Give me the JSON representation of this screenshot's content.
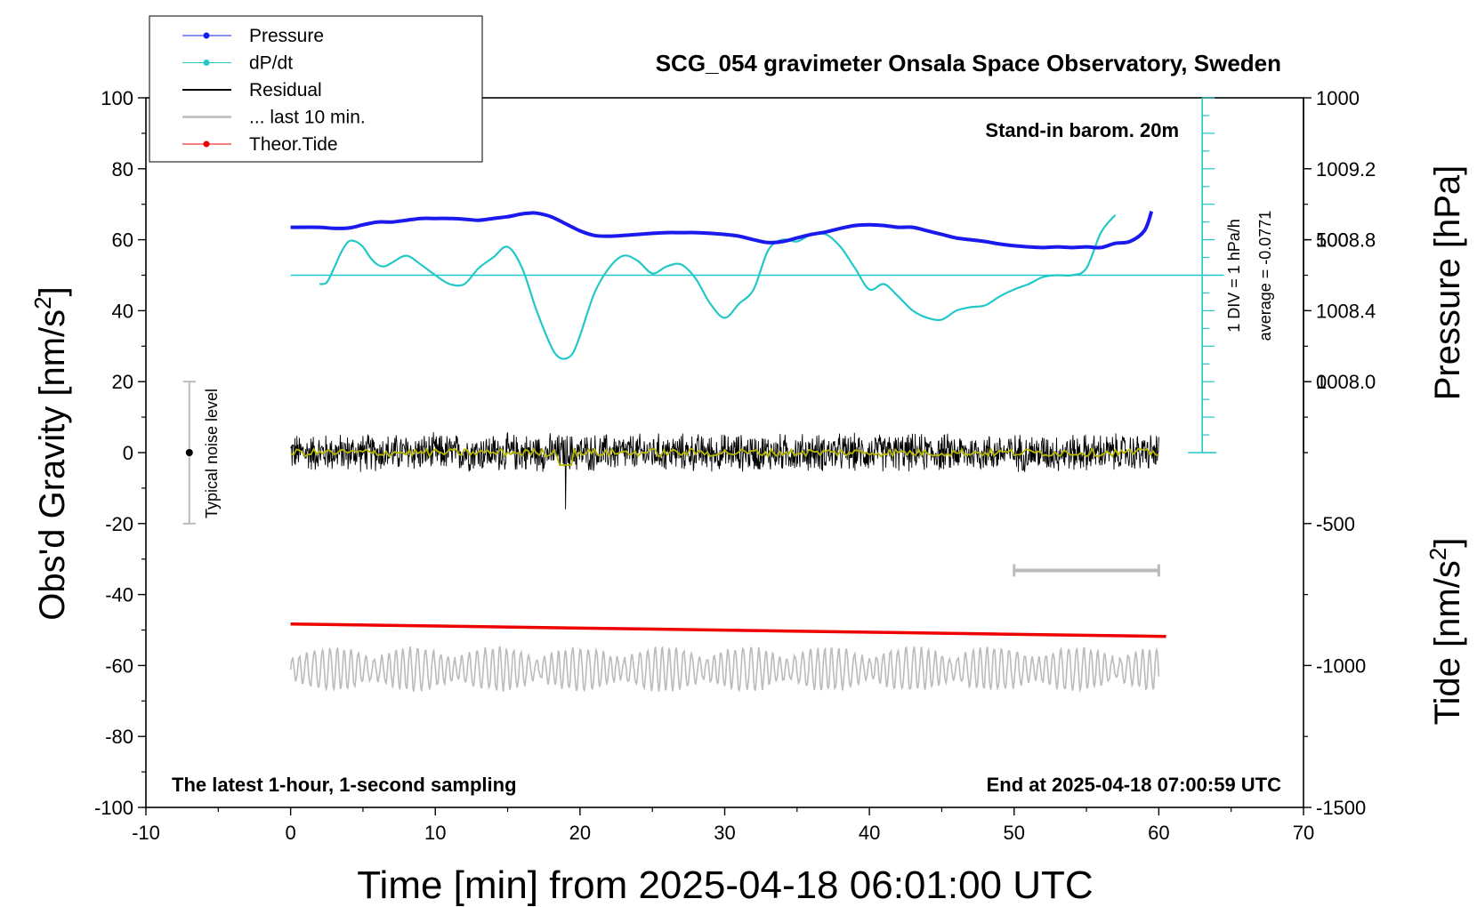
{
  "chart_data": {
    "type": "line",
    "title": "SCG_054 gravimeter Onsala Space Observatory, Sweden",
    "xlabel": "Time [min] from 2025-04-18 06:01:00 UTC",
    "ylabel_left": "Obs'd Gravity [nm/s",
    "ylabel_left_sup": "2",
    "ylabel_left_end": "]",
    "ylabel_right_pressure": "Pressure [hPa]",
    "ylabel_right_tide": "Tide [nm/s",
    "ylabel_right_tide_sup": "2",
    "ylabel_right_tide_end": "]",
    "xlim": [
      -10,
      70
    ],
    "ylim": [
      -100,
      100
    ],
    "x_ticks": [
      "-10",
      "0",
      "10",
      "20",
      "30",
      "40",
      "50",
      "60",
      "70"
    ],
    "y_ticks": [
      "-100",
      "-80",
      "-60",
      "-40",
      "-20",
      "0",
      "20",
      "40",
      "60",
      "80",
      "100"
    ],
    "pressure_ticks": [
      "1008.0",
      "1008.4",
      "1008.8",
      "1009.2"
    ],
    "pressure_tick_values": [
      1008.0,
      1008.4,
      1008.8,
      1009.2
    ],
    "pressure_axis_map": {
      "hpa_at_gravity_0": 1007.6,
      "hpa_per_gravity_unit": 0.02
    },
    "tide_ticks": [
      "1000",
      "500",
      "0",
      "-500",
      "-1000",
      "-1500"
    ],
    "tide_tick_values": [
      1000,
      500,
      0,
      -500,
      -1000,
      -1500
    ],
    "tide_axis_map": {
      "tide_at_gravity_neg100": -1500,
      "tide_per_gravity_unit": 12.5
    },
    "annotations": {
      "barometer": "Stand-in barom. 20m",
      "div_note": "1 DIV = 1 hPa/h",
      "average_note": "average = -0.0771",
      "noise_level": "Typical noise level",
      "latest": "The latest 1-hour, 1-second sampling",
      "end_at": "End at 2025-04-18 07:00:59 UTC"
    },
    "legend": {
      "position": "top-left",
      "entries": [
        {
          "label": "Pressure",
          "color": "#1a1aee"
        },
        {
          "label": "dP/dt",
          "color": "#22c8c8"
        },
        {
          "label": "Residual",
          "color": "#000000"
        },
        {
          "label": "... last 10 min.",
          "color": "#bbbbbb"
        },
        {
          "label": "Theor.Tide",
          "color": "#ee0000"
        }
      ]
    },
    "colors": {
      "pressure": "#1a1aee",
      "dpdt": "#22c8c8",
      "residual": "#000000",
      "residual_smooth": "#b5b500",
      "last10": "#bbbbbb",
      "tide": "#ee0000",
      "noise_bar": "#bbbbbb"
    },
    "series": [
      {
        "name": "Pressure",
        "unit": "plot-units (left axis)",
        "x": [
          0,
          2,
          3,
          4,
          5,
          6,
          7,
          8,
          9,
          10,
          11,
          12,
          13,
          14,
          15,
          16,
          16.5,
          17,
          18,
          19,
          20,
          21,
          22,
          23,
          24,
          25,
          26,
          27,
          28,
          29,
          30,
          31,
          32,
          33,
          34,
          35,
          36,
          37,
          38,
          39,
          40,
          41,
          42,
          43,
          44,
          45,
          46,
          47,
          48,
          49,
          50,
          51,
          52,
          53,
          54,
          55,
          56,
          57,
          58,
          59,
          59.5
        ],
        "y": [
          63.5,
          63.5,
          63.2,
          63.3,
          64.2,
          65,
          65,
          65.5,
          66,
          66,
          66,
          65.8,
          65.5,
          66,
          66.5,
          67.3,
          67.5,
          67.5,
          66.5,
          64.5,
          62.5,
          61.2,
          61,
          61.2,
          61.5,
          61.8,
          62,
          62,
          62,
          61.8,
          61.5,
          61,
          60,
          59.2,
          59.5,
          60.5,
          61.5,
          62.2,
          63.2,
          64,
          64.2,
          64,
          63.5,
          63.5,
          62.5,
          61.5,
          60.5,
          60,
          59.5,
          58.8,
          58.3,
          58,
          57.8,
          58,
          57.8,
          58,
          57.8,
          59,
          59.5,
          62.5,
          68
        ]
      },
      {
        "name": "dP/dt",
        "unit": "plot-units (left axis)",
        "zero_line": 50,
        "x": [
          2,
          2.5,
          3,
          3.5,
          4,
          4.5,
          5,
          5.5,
          6,
          6.5,
          7,
          8,
          9,
          10,
          11,
          12,
          13,
          14,
          15,
          16,
          17,
          18,
          18.5,
          19,
          19.5,
          20,
          21,
          22,
          23,
          24,
          25,
          26,
          27,
          28,
          29,
          30,
          31,
          32,
          33,
          34,
          35,
          36,
          37,
          38,
          39,
          40,
          41,
          42,
          43,
          44,
          45,
          46,
          47,
          48,
          49,
          50,
          51,
          52,
          53,
          54,
          55,
          56,
          57
        ],
        "y": [
          47.5,
          48,
          52,
          56.5,
          59.5,
          59.5,
          58,
          55,
          53,
          52.5,
          53.5,
          55.5,
          53,
          50,
          47.5,
          47.5,
          52,
          55,
          58,
          52,
          40,
          30,
          27,
          26.5,
          28,
          33,
          45,
          52,
          55.5,
          54,
          50.5,
          52.5,
          53,
          49,
          42,
          38,
          42,
          46,
          57,
          60,
          59.5,
          61.5,
          61.5,
          58,
          52,
          46,
          47.5,
          44,
          40,
          38,
          37.5,
          40,
          41,
          41.5,
          44,
          46,
          47.5,
          49.5,
          50,
          50,
          52,
          62,
          67
        ]
      },
      {
        "name": "Residual",
        "unit": "plot-units (left axis)",
        "x_range": [
          0,
          60
        ],
        "center": 0,
        "amplitude": 5,
        "spike": {
          "x": 19,
          "y": -16
        }
      },
      {
        "name": "... last 10 min.",
        "unit": "plot-units (left axis)",
        "x_range": [
          0,
          60
        ],
        "center": -61,
        "amplitude": 6
      },
      {
        "name": "Theor.Tide",
        "unit": "plot-units (left axis)",
        "x": [
          0,
          60.5
        ],
        "y": [
          -48.3,
          -51.8
        ]
      }
    ],
    "noise_bar": {
      "x": -7,
      "y": [
        -20,
        20
      ],
      "center": 0
    },
    "span_bar": {
      "x": [
        50,
        60
      ],
      "y": -33.2
    },
    "dpdt_scale": {
      "x": 63,
      "y": [
        0,
        100
      ],
      "minor_step": 5
    }
  }
}
